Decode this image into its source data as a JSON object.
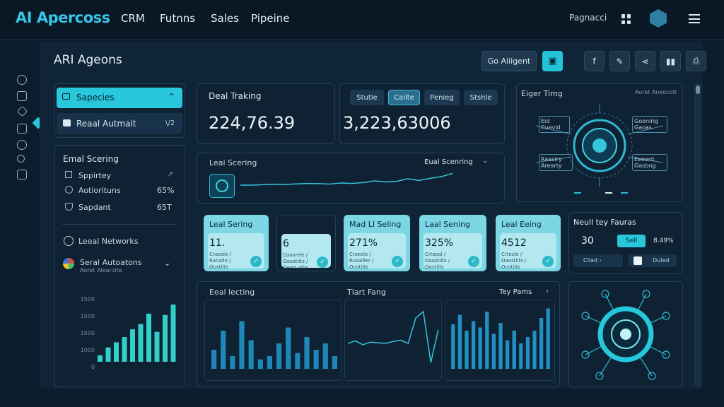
{
  "header": {
    "logo": "AI Apercoss",
    "nav": [
      "CRM",
      "Futnns",
      "Sales",
      "Pipeine"
    ],
    "right_text": "Pagnacci"
  },
  "page": {
    "title": "ARI Ageons",
    "agent_button": "Go Aliigent"
  },
  "sidebar": {
    "items": [
      {
        "label": "Sapecies",
        "badge": "^"
      },
      {
        "label": "Reaal Autmait",
        "badge": "\\/2"
      }
    ]
  },
  "email_scoring": {
    "title": "Emal Scering",
    "rows": [
      {
        "label": "Sppirtey",
        "value": ""
      },
      {
        "label": "Aotiorituns",
        "value": "65%"
      },
      {
        "label": "Sapdant",
        "value": "65T"
      }
    ],
    "networks": "Leeal Networks",
    "social": "Seral Autoatons",
    "social_sub": "Aoret Alearolte",
    "yticks": [
      "1500",
      "1500",
      "1500",
      "1000",
      "0"
    ],
    "bars": [
      10,
      22,
      30,
      38,
      50,
      58,
      74,
      46,
      72,
      88
    ]
  },
  "deal_tracking": {
    "title": "Deal Traking",
    "value": "224,76.39"
  },
  "tabs": {
    "items": [
      "Stutle",
      "Cailte",
      "Penieg",
      "Stshle"
    ],
    "value": "3,223,63006"
  },
  "lead_scoring": {
    "title": "Leal Scering",
    "dropdown": "Eual Scenring",
    "sparkline": [
      40,
      40,
      42,
      44,
      43,
      46,
      48,
      47,
      45,
      50,
      48,
      52,
      60,
      55,
      58,
      70,
      62,
      72,
      80,
      95
    ]
  },
  "diagram": {
    "title": "Eiger Timg",
    "subtitle": "Aoret Aneocolt",
    "labels": [
      "Eid Cuevid",
      "Goonirig Gaoas",
      "Raasiry Arearty",
      "Eeeerd Gasbng"
    ]
  },
  "cards": [
    {
      "title": "Leal Sering",
      "value": "11.",
      "sub": "Craesle / Ranalle / Oustiits"
    },
    {
      "title": "",
      "value": "6",
      "sub": "Coasrele / Oaostiits / Oemt alhs"
    },
    {
      "title": "Mad LI Seling",
      "value": "271%",
      "sub": "Craesle / Rusailler / Oustiits"
    },
    {
      "title": "Laal Sening",
      "value": "325%",
      "sub": "Crtasal / Oaostiits / Oustiits"
    },
    {
      "title": "Leal Eeing",
      "value": "4512",
      "sub": "Crtesle / Oaostiits / Oustiits"
    }
  ],
  "neural": {
    "title": "Neull tey Fauras",
    "value": "30",
    "btn": "Sell",
    "stat": "8.49%",
    "btn2": "Cilad",
    "btn3": "Duled"
  },
  "bottom": {
    "left_title": "Eeal lecting",
    "mid_title": "Tlart Fang",
    "right_title": "Tey Pams",
    "bars_a": [
      30,
      60,
      20,
      75,
      45,
      15
    ],
    "bars_b": [
      20,
      40,
      65,
      25,
      50,
      30,
      40,
      20
    ],
    "line": [
      40,
      44,
      38,
      42,
      41,
      40,
      43,
      45,
      40,
      80,
      90,
      10,
      62
    ],
    "bars_c": [
      70,
      85,
      60,
      75,
      65,
      90,
      55,
      72,
      45,
      60,
      40,
      50,
      60,
      80,
      95
    ]
  },
  "colors": {
    "accent": "#28c7dc",
    "bar": "#2a8ab8",
    "bar_teal": "#2fd0c9",
    "bg": "#0b1c2c"
  }
}
